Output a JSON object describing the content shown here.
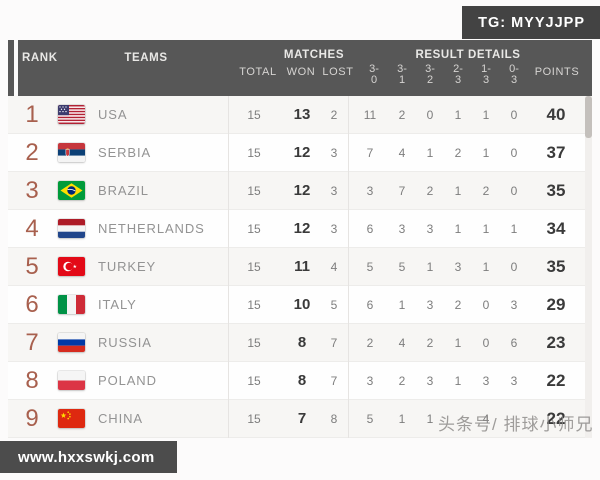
{
  "page": {
    "tg_badge": "TG: MYYJJPP",
    "website_badge": "www.hxxswkj.com",
    "watermark": "头条号/ 排球小师兄"
  },
  "colors": {
    "header_bg": "#575757",
    "badge_bg": "#434343",
    "site_badge_bg": "#4c4c4c",
    "rank_accent": "#a8604e",
    "won_points_text": "#3a3a3a",
    "muted_text": "#7d7d7d",
    "team_text": "#939393"
  },
  "table": {
    "columns": {
      "rank": "RANK",
      "teams": "TEAMS",
      "matches": "MATCHES",
      "result_details": "RESULT DETAILS",
      "total": "TOTAL",
      "won": "WON",
      "lost": "LOST",
      "results": [
        "3-0",
        "3-1",
        "3-2",
        "2-3",
        "1-3",
        "0-3"
      ],
      "points": "POINTS"
    },
    "rows": [
      {
        "rank": "1",
        "flag": "usa",
        "team": "USA",
        "total": "15",
        "won": "13",
        "lost": "2",
        "results": [
          "11",
          "2",
          "0",
          "1",
          "1",
          "0"
        ],
        "points": "40"
      },
      {
        "rank": "2",
        "flag": "serbia",
        "team": "SERBIA",
        "total": "15",
        "won": "12",
        "lost": "3",
        "results": [
          "7",
          "4",
          "1",
          "2",
          "1",
          "0"
        ],
        "points": "37"
      },
      {
        "rank": "3",
        "flag": "brazil",
        "team": "BRAZIL",
        "total": "15",
        "won": "12",
        "lost": "3",
        "results": [
          "3",
          "7",
          "2",
          "1",
          "2",
          "0"
        ],
        "points": "35"
      },
      {
        "rank": "4",
        "flag": "netherlands",
        "team": "NETHERLANDS",
        "total": "15",
        "won": "12",
        "lost": "3",
        "results": [
          "6",
          "3",
          "3",
          "1",
          "1",
          "1"
        ],
        "points": "34"
      },
      {
        "rank": "5",
        "flag": "turkey",
        "team": "TURKEY",
        "total": "15",
        "won": "11",
        "lost": "4",
        "results": [
          "5",
          "5",
          "1",
          "3",
          "1",
          "0"
        ],
        "points": "35"
      },
      {
        "rank": "6",
        "flag": "italy",
        "team": "ITALY",
        "total": "15",
        "won": "10",
        "lost": "5",
        "results": [
          "6",
          "1",
          "3",
          "2",
          "0",
          "3"
        ],
        "points": "29"
      },
      {
        "rank": "7",
        "flag": "russia",
        "team": "RUSSIA",
        "total": "15",
        "won": "8",
        "lost": "7",
        "results": [
          "2",
          "4",
          "2",
          "1",
          "0",
          "6"
        ],
        "points": "23"
      },
      {
        "rank": "8",
        "flag": "poland",
        "team": "POLAND",
        "total": "15",
        "won": "8",
        "lost": "7",
        "results": [
          "3",
          "2",
          "3",
          "1",
          "3",
          "3"
        ],
        "points": "22"
      },
      {
        "rank": "9",
        "flag": "china",
        "team": "CHINA",
        "total": "15",
        "won": "7",
        "lost": "8",
        "results": [
          "5",
          "1",
          "1",
          "",
          "4",
          ""
        ],
        "points": "22"
      }
    ]
  }
}
